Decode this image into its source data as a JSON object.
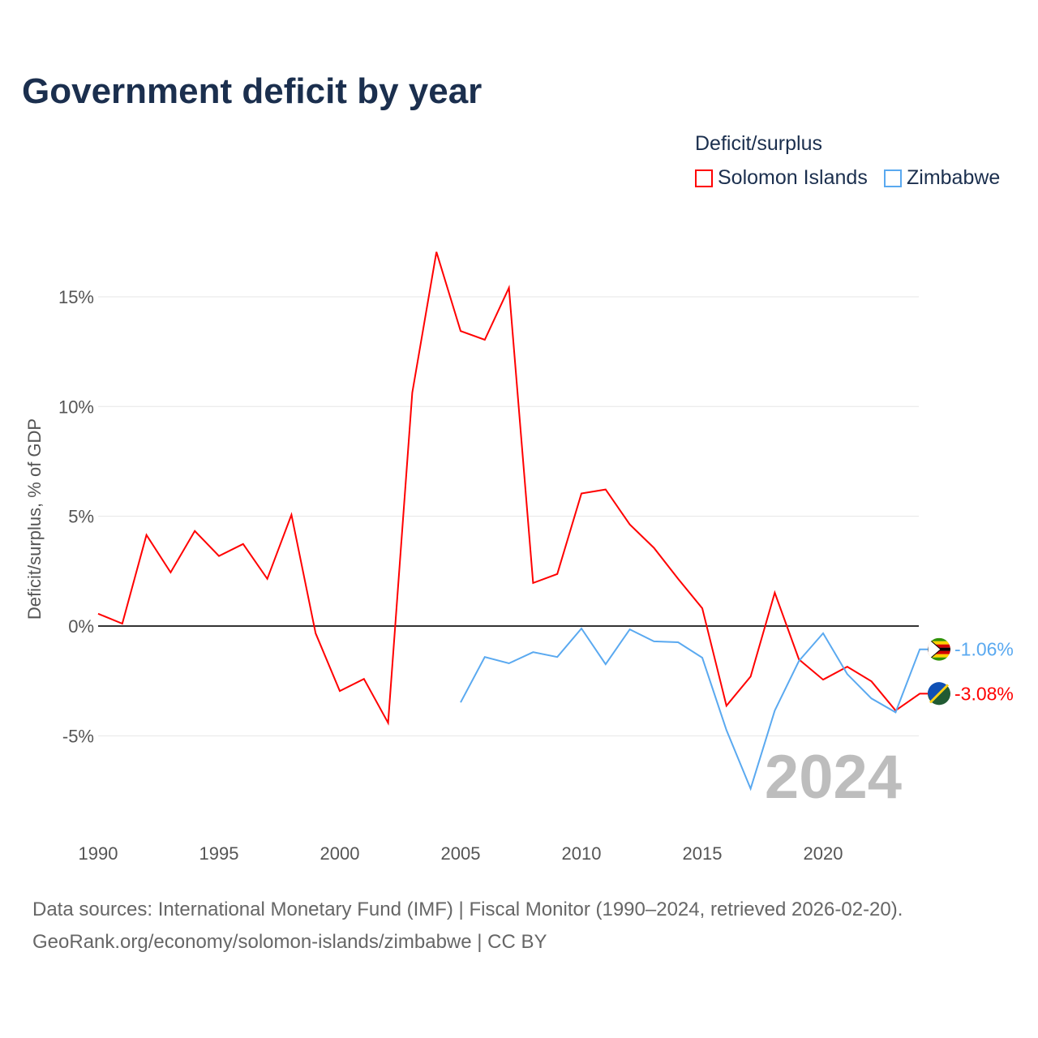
{
  "chart_data": {
    "type": "line",
    "title": "Government deficit by year",
    "ylabel": "Deficit/surplus, % of GDP",
    "xlabel": "",
    "xlim": [
      1990,
      2024
    ],
    "ylim": [
      -8.5,
      17.5
    ],
    "x_ticks": [
      1990,
      1995,
      2000,
      2005,
      2010,
      2015,
      2020
    ],
    "x_tick_labels": [
      "1990",
      "1995",
      "2000",
      "2005",
      "2010",
      "2015",
      "2020"
    ],
    "y_ticks": [
      15,
      10,
      5,
      0,
      -5
    ],
    "y_tick_labels": [
      "15%",
      "10%",
      "5%",
      "0%",
      "-5%"
    ],
    "grid": true,
    "legend_title": "Deficit/surplus",
    "legend_position": "top-right",
    "year_watermark": "2024",
    "series": [
      {
        "name": "Solomon Islands",
        "color": "#ff0000",
        "end_label": "-3.08%",
        "x": [
          1990,
          1991,
          1992,
          1993,
          1994,
          1995,
          1996,
          1997,
          1998,
          1999,
          2000,
          2001,
          2002,
          2003,
          2004,
          2005,
          2006,
          2007,
          2008,
          2009,
          2010,
          2011,
          2012,
          2013,
          2014,
          2015,
          2016,
          2017,
          2018,
          2019,
          2020,
          2021,
          2022,
          2023,
          2024
        ],
        "values": [
          0.56,
          0.11,
          4.15,
          2.44,
          4.33,
          3.19,
          3.74,
          2.15,
          5.07,
          -0.33,
          -2.96,
          -2.41,
          -4.41,
          10.63,
          17.04,
          13.44,
          13.04,
          15.41,
          1.96,
          2.37,
          6.04,
          6.22,
          4.63,
          3.56,
          2.15,
          0.81,
          -3.63,
          -2.3,
          1.52,
          -1.52,
          -2.44,
          -1.85,
          -2.52,
          -3.85,
          -3.08
        ]
      },
      {
        "name": "Zimbabwe",
        "color": "#5aa9f0",
        "end_label": "-1.06%",
        "x": [
          2005,
          2006,
          2007,
          2008,
          2009,
          2010,
          2011,
          2012,
          2013,
          2014,
          2015,
          2016,
          2017,
          2018,
          2019,
          2020,
          2021,
          2022,
          2023,
          2024
        ],
        "values": [
          -3.48,
          -1.41,
          -1.7,
          -1.19,
          -1.41,
          -0.11,
          -1.74,
          -0.15,
          -0.7,
          -0.74,
          -1.44,
          -4.74,
          -7.41,
          -3.85,
          -1.59,
          -0.33,
          -2.19,
          -3.3,
          -3.93,
          -1.06
        ]
      }
    ]
  },
  "sources": {
    "line1": "Data sources: International Monetary Fund (IMF) | Fiscal Monitor (1990–2024, retrieved 2026-02-20).",
    "line2": "GeoRank.org/economy/solomon-islands/zimbabwe | CC BY"
  }
}
